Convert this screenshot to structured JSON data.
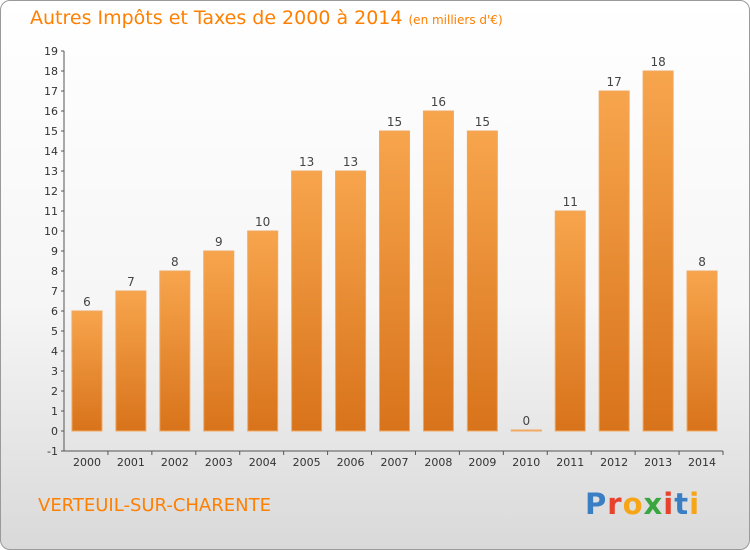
{
  "header": {
    "title": "Autres Impôts et Taxes de 2000 à 2014",
    "unit": "(en milliers d'€)"
  },
  "footer": {
    "city": "VERTEUIL-SUR-CHARENTE",
    "logo": [
      "P",
      "r",
      "o",
      "x",
      "i",
      "t",
      "i"
    ],
    "logo_colors": [
      "#3a7fc4",
      "#e8412c",
      "#f6a516",
      "#3aa640",
      "#e8412c",
      "#3a7fc4",
      "#f6a516"
    ]
  },
  "chart_data": {
    "type": "bar",
    "categories": [
      "2000",
      "2001",
      "2002",
      "2003",
      "2004",
      "2005",
      "2006",
      "2007",
      "2008",
      "2009",
      "2010",
      "2011",
      "2012",
      "2013",
      "2014"
    ],
    "values": [
      6,
      7,
      8,
      9,
      10,
      13,
      13,
      15,
      16,
      15,
      0,
      11,
      17,
      18,
      8
    ],
    "title": "Autres Impôts et Taxes de 2000 à 2014",
    "ylim": [
      -1,
      19
    ],
    "yticks": [
      "-1",
      "0",
      "1",
      "2",
      "3",
      "4",
      "5",
      "6",
      "7",
      "8",
      "9",
      "10",
      "11",
      "12",
      "13",
      "14",
      "15",
      "16",
      "17",
      "18",
      "19"
    ],
    "grid": false,
    "bar_color": "#f39a3c",
    "bar_color_dark": "#d9731a"
  }
}
